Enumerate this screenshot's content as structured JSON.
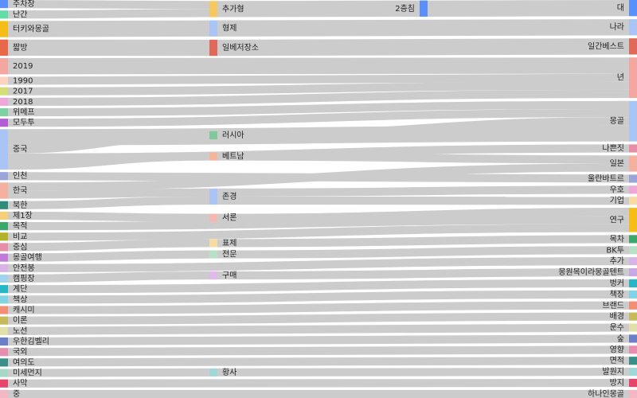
{
  "chart_data": {
    "type": "sankey",
    "colors": {
      "link": "#cccccc",
      "background": "#ffffff"
    },
    "columns": [
      [
        {
          "id": "n0",
          "label": "주차장",
          "color": "#5b8ff9"
        },
        {
          "id": "n1",
          "label": "난간",
          "color": "#61ddaa"
        },
        {
          "id": "n2",
          "label": "터키와몽골",
          "color": "#f6bd16"
        },
        {
          "id": "n3",
          "label": "짧방",
          "color": "#e8684a"
        },
        {
          "id": "n4",
          "label": "2019",
          "color": "#f4a6a0"
        },
        {
          "id": "n5",
          "label": "1990",
          "color": "#fcd2c2"
        },
        {
          "id": "n6",
          "label": "2017",
          "color": "#d7dd75"
        },
        {
          "id": "n7",
          "label": "2018",
          "color": "#f1a6d9"
        },
        {
          "id": "n8",
          "label": "위메프",
          "color": "#7fd1a1"
        },
        {
          "id": "n9",
          "label": "모두투",
          "color": "#b45bd6"
        },
        {
          "id": "n10",
          "label": "중국",
          "color": "#a9c4f5"
        },
        {
          "id": "n11",
          "label": "인천",
          "color": "#9aa4d8"
        },
        {
          "id": "n12",
          "label": "한국",
          "color": "#f4b19f"
        },
        {
          "id": "n13",
          "label": "북한",
          "color": "#2f8c7a"
        },
        {
          "id": "n14",
          "label": "제1장",
          "color": "#f6cf7a"
        },
        {
          "id": "n15",
          "label": "목적",
          "color": "#3aa86b"
        },
        {
          "id": "n16",
          "label": "비교",
          "color": "#b3b32a"
        },
        {
          "id": "n17",
          "label": "중심",
          "color": "#e58ea6"
        },
        {
          "id": "n18",
          "label": "몽골여행",
          "color": "#c07bd9"
        },
        {
          "id": "n19",
          "label": "안전봉",
          "color": "#d7b3e6"
        },
        {
          "id": "n20",
          "label": "캠핑장",
          "color": "#9fd3ee"
        },
        {
          "id": "n21",
          "label": "계단",
          "color": "#26b7c6"
        },
        {
          "id": "n22",
          "label": "책상",
          "color": "#80d4e6"
        },
        {
          "id": "n23",
          "label": "캐시미",
          "color": "#f28e74"
        },
        {
          "id": "n24",
          "label": "이론",
          "color": "#c7ba58"
        },
        {
          "id": "n25",
          "label": "노선",
          "color": "#e0e0a8"
        },
        {
          "id": "n26",
          "label": "우한김벨리",
          "color": "#6b7fc7"
        },
        {
          "id": "n27",
          "label": "국외",
          "color": "#e58eb0"
        },
        {
          "id": "n28",
          "label": "여의도",
          "color": "#3b8f88"
        },
        {
          "id": "n29",
          "label": "미세먼지",
          "color": "#a5d9c5"
        },
        {
          "id": "n30",
          "label": "사막",
          "color": "#e8456b"
        },
        {
          "id": "n31",
          "label": "중",
          "color": "#f2b8c6"
        }
      ],
      [
        {
          "id": "m0",
          "label": "추가형",
          "color": "#f6c860"
        },
        {
          "id": "m1",
          "label": "형제",
          "color": "#a9c4f5"
        },
        {
          "id": "m2",
          "label": "일베저장소",
          "color": "#e06a5a"
        },
        {
          "id": "m3",
          "label": "러시아",
          "color": "#7fc99a"
        },
        {
          "id": "m4",
          "label": "베트남",
          "color": "#f6b49c"
        },
        {
          "id": "m5",
          "label": "존경",
          "color": "#a9c4f5"
        },
        {
          "id": "m6",
          "label": "서론",
          "color": "#f4b8b0"
        },
        {
          "id": "m7",
          "label": "표제",
          "color": "#f8dba0"
        },
        {
          "id": "m8",
          "label": "전문",
          "color": "#b7e0c7"
        },
        {
          "id": "m9",
          "label": "구매",
          "color": "#e0b8ec"
        },
        {
          "id": "m10",
          "label": "황사",
          "color": "#9fd8d8"
        }
      ],
      [
        {
          "id": "k0",
          "label": "2층침",
          "color": "#5b8ff9"
        }
      ],
      [
        {
          "id": "r0",
          "label": "대",
          "color": "#5b8ff9"
        },
        {
          "id": "r1",
          "label": "나라",
          "color": "#a9c4f5"
        },
        {
          "id": "r2",
          "label": "일간베스트",
          "color": "#e06a5a"
        },
        {
          "id": "r3",
          "label": "년",
          "color": "#f4a6a0"
        },
        {
          "id": "r4",
          "label": "몽골",
          "color": "#a9c4f5"
        },
        {
          "id": "r5",
          "label": "나쁜짓",
          "color": "#e58ea6"
        },
        {
          "id": "r6",
          "label": "일본",
          "color": "#f4b19f"
        },
        {
          "id": "r7",
          "label": "울란바트르",
          "color": "#9aa4d8"
        },
        {
          "id": "r8",
          "label": "우호",
          "color": "#f1a6d9"
        },
        {
          "id": "r9",
          "label": "기업",
          "color": "#f8dba0"
        },
        {
          "id": "r10",
          "label": "연구",
          "color": "#f6bd16"
        },
        {
          "id": "r11",
          "label": "목차",
          "color": "#3aa86b"
        },
        {
          "id": "r12",
          "label": "BK투",
          "color": "#b7e0c7"
        },
        {
          "id": "r13",
          "label": "추가",
          "color": "#d7b3e6"
        },
        {
          "id": "r14",
          "label": "몽원목이라몽골텐트",
          "color": "#c9a6e6"
        },
        {
          "id": "r15",
          "label": "벙커",
          "color": "#26b7c6"
        },
        {
          "id": "r16",
          "label": "책장",
          "color": "#80d4e6"
        },
        {
          "id": "r17",
          "label": "브랜드",
          "color": "#f28e74"
        },
        {
          "id": "r18",
          "label": "배경",
          "color": "#c7ba58"
        },
        {
          "id": "r19",
          "label": "운수",
          "color": "#e0e0a8"
        },
        {
          "id": "r20",
          "label": "숲",
          "color": "#6b7fc7"
        },
        {
          "id": "r21",
          "label": "영향",
          "color": "#e58eb0"
        },
        {
          "id": "r22",
          "label": "면적",
          "color": "#3b8f88"
        },
        {
          "id": "r23",
          "label": "발원지",
          "color": "#9fd8d8"
        },
        {
          "id": "r24",
          "label": "방지",
          "color": "#e8456b"
        },
        {
          "id": "r25",
          "label": "하나인몽골",
          "color": "#f2b8c6"
        }
      ]
    ],
    "links": [
      {
        "source": "n0",
        "target": "m0",
        "value": 1
      },
      {
        "source": "n1",
        "target": "m0",
        "value": 1
      },
      {
        "source": "m0",
        "target": "k0",
        "value": 2
      },
      {
        "source": "k0",
        "target": "r0",
        "value": 2
      },
      {
        "source": "n2",
        "target": "m1",
        "value": 2
      },
      {
        "source": "m1",
        "target": "r1",
        "value": 2
      },
      {
        "source": "n3",
        "target": "m2",
        "value": 2
      },
      {
        "source": "m2",
        "target": "r2",
        "value": 2
      },
      {
        "source": "n4",
        "target": "r3",
        "value": 2
      },
      {
        "source": "n5",
        "target": "r3",
        "value": 1
      },
      {
        "source": "n6",
        "target": "r3",
        "value": 1
      },
      {
        "source": "n7",
        "target": "r3",
        "value": 1
      },
      {
        "source": "n8",
        "target": "r4",
        "value": 1
      },
      {
        "source": "n9",
        "target": "r4",
        "value": 1
      },
      {
        "source": "n10",
        "target": "r4",
        "value": 2
      },
      {
        "source": "n10",
        "target": "m3",
        "value": 1
      },
      {
        "source": "n10",
        "target": "m4",
        "value": 1
      },
      {
        "source": "m3",
        "target": "r4",
        "value": 1
      },
      {
        "source": "m4",
        "target": "r6",
        "value": 1
      },
      {
        "source": "n10",
        "target": "r5",
        "value": 1
      },
      {
        "source": "n11",
        "target": "r7",
        "value": 1
      },
      {
        "source": "n12",
        "target": "m5",
        "value": 1
      },
      {
        "source": "n12",
        "target": "r6",
        "value": 1
      },
      {
        "source": "m5",
        "target": "r8",
        "value": 1
      },
      {
        "source": "n13",
        "target": "m5",
        "value": 1
      },
      {
        "source": "m5",
        "target": "r9",
        "value": 1
      },
      {
        "source": "n14",
        "target": "m6",
        "value": 1
      },
      {
        "source": "m6",
        "target": "r10",
        "value": 1
      },
      {
        "source": "n15",
        "target": "r10",
        "value": 1
      },
      {
        "source": "n16",
        "target": "r10",
        "value": 1
      },
      {
        "source": "n17",
        "target": "m7",
        "value": 1
      },
      {
        "source": "m7",
        "target": "r11",
        "value": 1
      },
      {
        "source": "n18",
        "target": "m8",
        "value": 1
      },
      {
        "source": "m8",
        "target": "r12",
        "value": 1
      },
      {
        "source": "n19",
        "target": "r13",
        "value": 1
      },
      {
        "source": "n20",
        "target": "m9",
        "value": 1
      },
      {
        "source": "m9",
        "target": "r14",
        "value": 1
      },
      {
        "source": "n21",
        "target": "r15",
        "value": 1
      },
      {
        "source": "n22",
        "target": "r16",
        "value": 1
      },
      {
        "source": "n23",
        "target": "r17",
        "value": 1
      },
      {
        "source": "n24",
        "target": "r18",
        "value": 1
      },
      {
        "source": "n25",
        "target": "r19",
        "value": 1
      },
      {
        "source": "n26",
        "target": "r20",
        "value": 1
      },
      {
        "source": "n27",
        "target": "r21",
        "value": 1
      },
      {
        "source": "n28",
        "target": "r22",
        "value": 1
      },
      {
        "source": "n29",
        "target": "m10",
        "value": 1
      },
      {
        "source": "m10",
        "target": "r23",
        "value": 1
      },
      {
        "source": "n30",
        "target": "r24",
        "value": 1
      },
      {
        "source": "n31",
        "target": "r25",
        "value": 1
      }
    ]
  }
}
